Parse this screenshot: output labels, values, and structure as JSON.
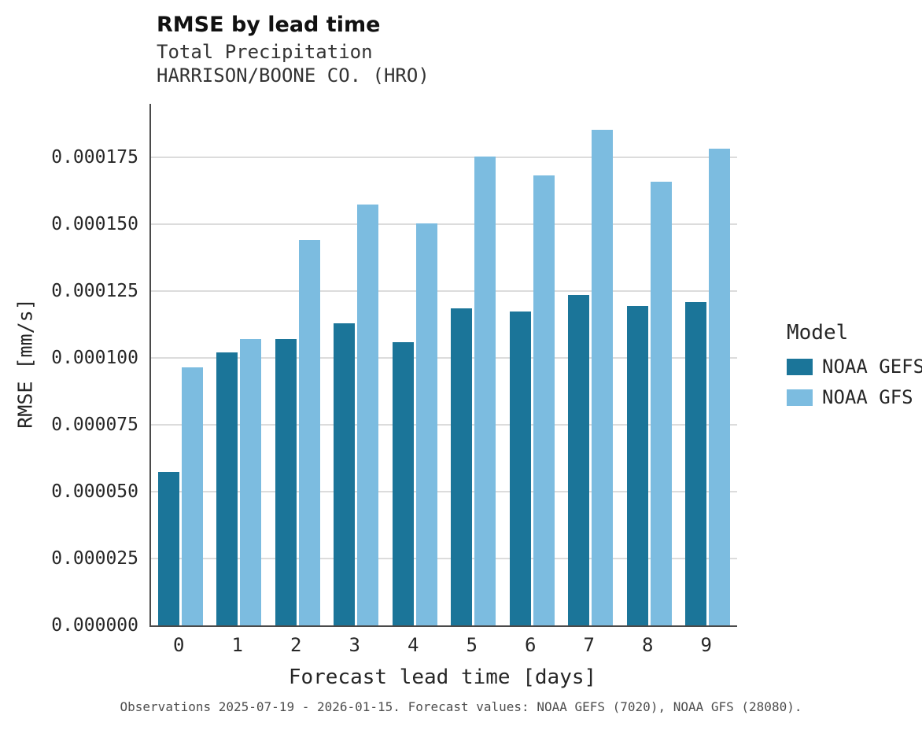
{
  "chart": {
    "title": "RMSE by lead time",
    "subtitle_line1": "Total Precipitation",
    "subtitle_line2": "HARRISON/BOONE CO. (HRO)",
    "ylabel": "RMSE [mm/s]",
    "xlabel": "Forecast lead time [days]",
    "legend": {
      "title": "Model"
    },
    "caption": "Observations 2025-07-19 - 2026-01-15. Forecast values: NOAA GEFS (7020), NOAA GFS (28080)."
  },
  "chart_data": {
    "type": "bar",
    "title": "RMSE by lead time",
    "subtitle": "Total Precipitation — HARRISON/BOONE CO. (HRO)",
    "xlabel": "Forecast lead time [days]",
    "ylabel": "RMSE [mm/s]",
    "categories": [
      "0",
      "1",
      "2",
      "3",
      "4",
      "5",
      "6",
      "7",
      "8",
      "9"
    ],
    "series": [
      {
        "name": "NOAA GEFS",
        "color": "#1b7599",
        "values": [
          5.75e-05,
          0.000102,
          0.000107,
          0.000113,
          0.000106,
          0.0001185,
          0.0001175,
          0.0001235,
          0.0001195,
          0.000121
        ]
      },
      {
        "name": "NOAA GFS",
        "color": "#7cbce0",
        "values": [
          9.65e-05,
          0.000107,
          0.000144,
          0.0001575,
          0.0001503,
          0.0001752,
          0.0001683,
          0.0001853,
          0.000166,
          0.0001782
        ]
      }
    ],
    "ylim": [
      0,
      0.000195
    ],
    "yticks": [
      {
        "value": 0.0,
        "label": "0.000000"
      },
      {
        "value": 2.5e-05,
        "label": "0.000025"
      },
      {
        "value": 5e-05,
        "label": "0.000050"
      },
      {
        "value": 7.5e-05,
        "label": "0.000075"
      },
      {
        "value": 0.0001,
        "label": "0.000100"
      },
      {
        "value": 0.000125,
        "label": "0.000125"
      },
      {
        "value": 0.00015,
        "label": "0.000150"
      },
      {
        "value": 0.000175,
        "label": "0.000175"
      }
    ],
    "grid": "horizontal",
    "legend_position": "right",
    "legend_title": "Model",
    "caption": "Observations 2025-07-19 - 2026-01-15. Forecast values: NOAA GEFS (7020), NOAA GFS (28080)."
  }
}
